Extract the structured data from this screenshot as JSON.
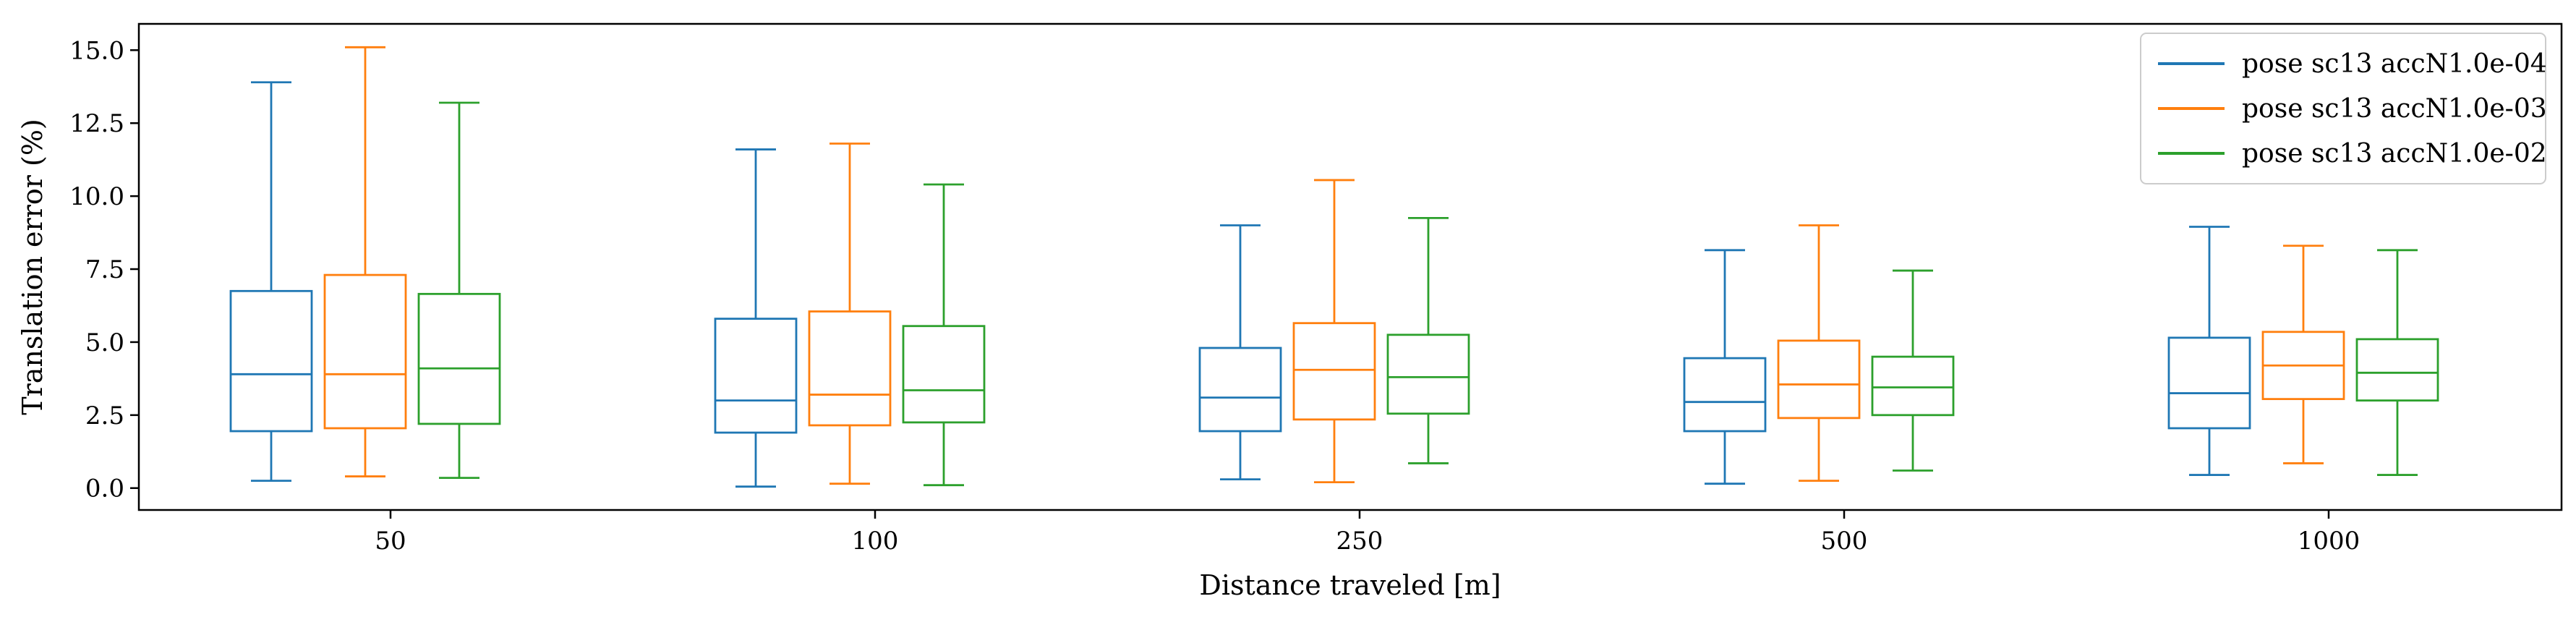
{
  "chart_data": {
    "type": "box",
    "categories": [
      "50",
      "100",
      "250",
      "500",
      "1000"
    ],
    "xlabel": "Distance traveled [m]",
    "ylabel": "Translation error (%)",
    "ylim": [
      -0.75,
      15.9
    ],
    "yticks": [
      0.0,
      2.5,
      5.0,
      7.5,
      10.0,
      12.5,
      15.0
    ],
    "ytick_labels": [
      "0.0",
      "2.5",
      "5.0",
      "7.5",
      "10.0",
      "12.5",
      "15.0"
    ],
    "grid": false,
    "legend_position": "top-right",
    "series": [
      {
        "name": "pose sc13 accN1.0e-04",
        "color": "#1f77b4",
        "boxes": [
          {
            "whislo": 0.25,
            "q1": 1.95,
            "median": 3.9,
            "q3": 6.75,
            "whishi": 13.9
          },
          {
            "whislo": 0.05,
            "q1": 1.9,
            "median": 3.0,
            "q3": 5.8,
            "whishi": 11.6
          },
          {
            "whislo": 0.3,
            "q1": 1.95,
            "median": 3.1,
            "q3": 4.8,
            "whishi": 9.0
          },
          {
            "whislo": 0.15,
            "q1": 1.95,
            "median": 2.95,
            "q3": 4.45,
            "whishi": 8.15
          },
          {
            "whislo": 0.45,
            "q1": 2.05,
            "median": 3.25,
            "q3": 5.15,
            "whishi": 8.95
          }
        ]
      },
      {
        "name": "pose sc13 accN1.0e-03",
        "color": "#ff7f0e",
        "boxes": [
          {
            "whislo": 0.4,
            "q1": 2.05,
            "median": 3.9,
            "q3": 7.3,
            "whishi": 15.1
          },
          {
            "whislo": 0.15,
            "q1": 2.15,
            "median": 3.2,
            "q3": 6.05,
            "whishi": 11.8
          },
          {
            "whislo": 0.2,
            "q1": 2.35,
            "median": 4.05,
            "q3": 5.65,
            "whishi": 10.55
          },
          {
            "whislo": 0.25,
            "q1": 2.4,
            "median": 3.55,
            "q3": 5.05,
            "whishi": 9.0
          },
          {
            "whislo": 0.85,
            "q1": 3.05,
            "median": 4.2,
            "q3": 5.35,
            "whishi": 8.3
          }
        ]
      },
      {
        "name": "pose sc13 accN1.0e-02",
        "color": "#2ca02c",
        "boxes": [
          {
            "whislo": 0.35,
            "q1": 2.2,
            "median": 4.1,
            "q3": 6.65,
            "whishi": 13.2
          },
          {
            "whislo": 0.1,
            "q1": 2.25,
            "median": 3.35,
            "q3": 5.55,
            "whishi": 10.4
          },
          {
            "whislo": 0.85,
            "q1": 2.55,
            "median": 3.8,
            "q3": 5.25,
            "whishi": 9.25
          },
          {
            "whislo": 0.6,
            "q1": 2.5,
            "median": 3.45,
            "q3": 4.5,
            "whishi": 7.45
          },
          {
            "whislo": 0.45,
            "q1": 3.0,
            "median": 3.95,
            "q3": 5.1,
            "whishi": 8.15
          }
        ]
      }
    ]
  }
}
